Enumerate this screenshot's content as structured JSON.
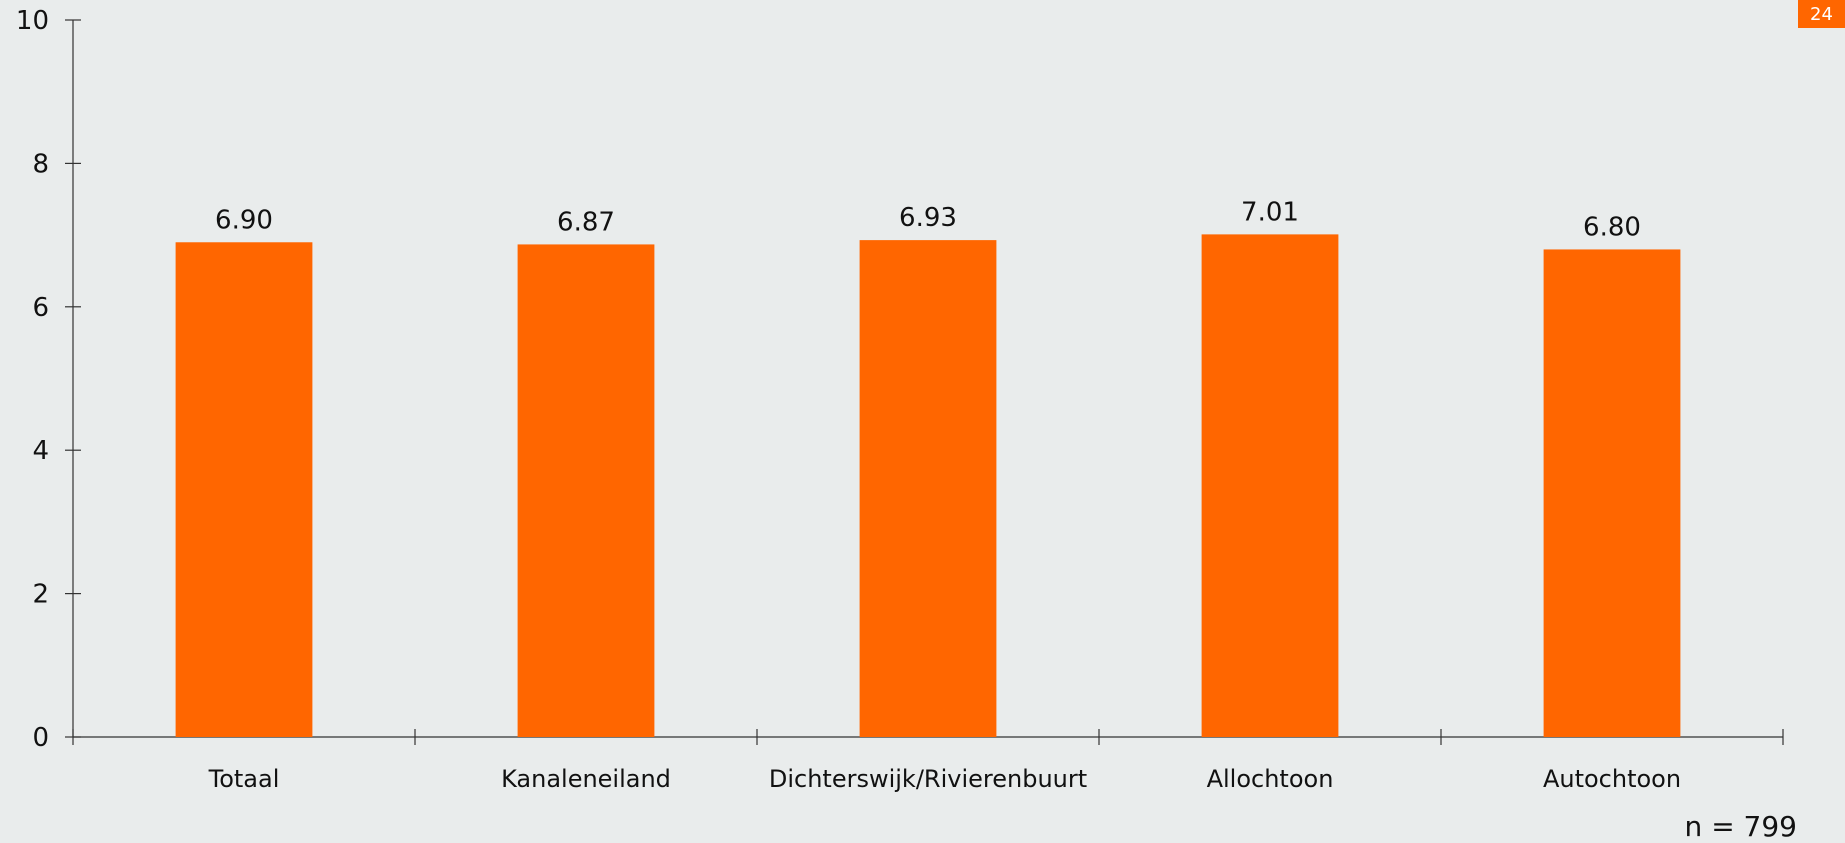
{
  "page_number": "24",
  "note": "n = 799",
  "colors": {
    "bar": "#ff6600",
    "background": "#e9ecec",
    "axis": "#333333"
  },
  "chart_data": {
    "type": "bar",
    "title": "",
    "xlabel": "",
    "ylabel": "",
    "categories": [
      "Totaal",
      "Kanaleneiland",
      "Dichterswijk/Rivierenbuurt",
      "Allochtoon",
      "Autochtoon"
    ],
    "values": [
      6.9,
      6.87,
      6.93,
      7.01,
      6.8
    ],
    "value_labels": [
      "6.90",
      "6.87",
      "6.93",
      "7.01",
      "6.80"
    ],
    "ylim": [
      0,
      10
    ],
    "yticks": [
      0,
      2,
      4,
      6,
      8,
      10
    ],
    "grid": false,
    "legend": "none"
  }
}
